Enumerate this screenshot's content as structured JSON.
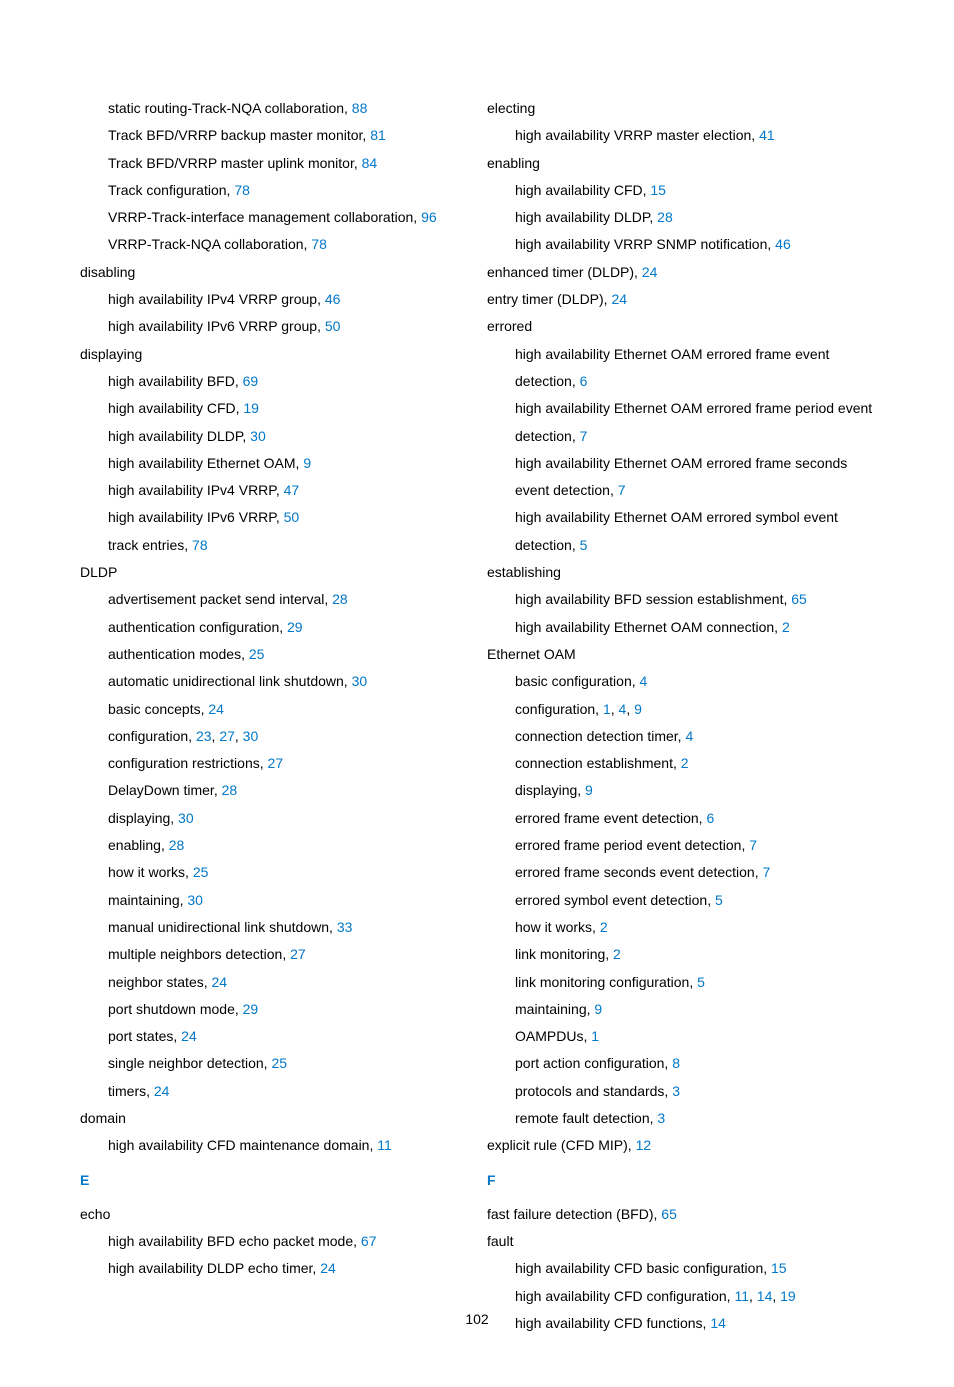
{
  "page_number": "102",
  "link_color": "#0077c8",
  "text_color": "#000000",
  "left_column": [
    {
      "type": "entry",
      "indent": 1,
      "text": "static routing-Track-NQA collaboration, ",
      "links": [
        "88"
      ]
    },
    {
      "type": "entry",
      "indent": 1,
      "text": "Track BFD/VRRP backup master monitor, ",
      "links": [
        "81"
      ]
    },
    {
      "type": "entry",
      "indent": 1,
      "text": "Track BFD/VRRP master uplink monitor, ",
      "links": [
        "84"
      ]
    },
    {
      "type": "entry",
      "indent": 1,
      "text": "Track configuration, ",
      "links": [
        "78"
      ]
    },
    {
      "type": "entry",
      "indent": 1,
      "text": "VRRP-Track-interface management collaboration, ",
      "links": [
        "96"
      ]
    },
    {
      "type": "entry",
      "indent": 1,
      "text": "VRRP-Track-NQA collaboration, ",
      "links": [
        "78"
      ]
    },
    {
      "type": "entry",
      "indent": 0,
      "text": "disabling",
      "links": []
    },
    {
      "type": "entry",
      "indent": 1,
      "text": "high availability IPv4 VRRP group, ",
      "links": [
        "46"
      ]
    },
    {
      "type": "entry",
      "indent": 1,
      "text": "high availability IPv6 VRRP group, ",
      "links": [
        "50"
      ]
    },
    {
      "type": "entry",
      "indent": 0,
      "text": "displaying",
      "links": []
    },
    {
      "type": "entry",
      "indent": 1,
      "text": "high availability BFD, ",
      "links": [
        "69"
      ]
    },
    {
      "type": "entry",
      "indent": 1,
      "text": "high availability CFD, ",
      "links": [
        "19"
      ]
    },
    {
      "type": "entry",
      "indent": 1,
      "text": "high availability DLDP, ",
      "links": [
        "30"
      ]
    },
    {
      "type": "entry",
      "indent": 1,
      "text": "high availability Ethernet OAM, ",
      "links": [
        "9"
      ]
    },
    {
      "type": "entry",
      "indent": 1,
      "text": "high availability IPv4 VRRP, ",
      "links": [
        "47"
      ]
    },
    {
      "type": "entry",
      "indent": 1,
      "text": "high availability IPv6 VRRP, ",
      "links": [
        "50"
      ]
    },
    {
      "type": "entry",
      "indent": 1,
      "text": "track entries, ",
      "links": [
        "78"
      ]
    },
    {
      "type": "entry",
      "indent": 0,
      "text": "DLDP",
      "links": []
    },
    {
      "type": "entry",
      "indent": 1,
      "text": "advertisement packet send interval, ",
      "links": [
        "28"
      ]
    },
    {
      "type": "entry",
      "indent": 1,
      "text": "authentication configuration, ",
      "links": [
        "29"
      ]
    },
    {
      "type": "entry",
      "indent": 1,
      "text": "authentication modes, ",
      "links": [
        "25"
      ]
    },
    {
      "type": "entry",
      "indent": 1,
      "text": "automatic unidirectional link shutdown, ",
      "links": [
        "30"
      ]
    },
    {
      "type": "entry",
      "indent": 1,
      "text": "basic concepts, ",
      "links": [
        "24"
      ]
    },
    {
      "type": "entry",
      "indent": 1,
      "text": "configuration, ",
      "links": [
        "23",
        "27",
        "30"
      ]
    },
    {
      "type": "entry",
      "indent": 1,
      "text": "configuration restrictions, ",
      "links": [
        "27"
      ]
    },
    {
      "type": "entry",
      "indent": 1,
      "text": "DelayDown timer, ",
      "links": [
        "28"
      ]
    },
    {
      "type": "entry",
      "indent": 1,
      "text": "displaying, ",
      "links": [
        "30"
      ]
    },
    {
      "type": "entry",
      "indent": 1,
      "text": "enabling, ",
      "links": [
        "28"
      ]
    },
    {
      "type": "entry",
      "indent": 1,
      "text": "how it works, ",
      "links": [
        "25"
      ]
    },
    {
      "type": "entry",
      "indent": 1,
      "text": "maintaining, ",
      "links": [
        "30"
      ]
    },
    {
      "type": "entry",
      "indent": 1,
      "text": "manual unidirectional link shutdown, ",
      "links": [
        "33"
      ]
    },
    {
      "type": "entry",
      "indent": 1,
      "text": "multiple neighbors detection, ",
      "links": [
        "27"
      ]
    },
    {
      "type": "entry",
      "indent": 1,
      "text": "neighbor states, ",
      "links": [
        "24"
      ]
    },
    {
      "type": "entry",
      "indent": 1,
      "text": "port shutdown mode, ",
      "links": [
        "29"
      ]
    },
    {
      "type": "entry",
      "indent": 1,
      "text": "port states, ",
      "links": [
        "24"
      ]
    },
    {
      "type": "entry",
      "indent": 1,
      "text": "single neighbor detection, ",
      "links": [
        "25"
      ]
    },
    {
      "type": "entry",
      "indent": 1,
      "text": "timers, ",
      "links": [
        "24"
      ]
    },
    {
      "type": "entry",
      "indent": 0,
      "text": "domain",
      "links": []
    },
    {
      "type": "entry",
      "indent": 1,
      "text": "high availability CFD maintenance domain, ",
      "links": [
        "11"
      ]
    },
    {
      "type": "section",
      "letter": "E"
    },
    {
      "type": "entry",
      "indent": 0,
      "text": "echo",
      "links": []
    },
    {
      "type": "entry",
      "indent": 1,
      "text": "high availability BFD echo packet mode, ",
      "links": [
        "67"
      ]
    },
    {
      "type": "entry",
      "indent": 1,
      "text": "high availability DLDP echo timer, ",
      "links": [
        "24"
      ]
    }
  ],
  "right_column": [
    {
      "type": "entry",
      "indent": 0,
      "text": "electing",
      "links": []
    },
    {
      "type": "entry",
      "indent": 1,
      "text": "high availability VRRP master election, ",
      "links": [
        "41"
      ]
    },
    {
      "type": "entry",
      "indent": 0,
      "text": "enabling",
      "links": []
    },
    {
      "type": "entry",
      "indent": 1,
      "text": "high availability CFD, ",
      "links": [
        "15"
      ]
    },
    {
      "type": "entry",
      "indent": 1,
      "text": "high availability DLDP, ",
      "links": [
        "28"
      ]
    },
    {
      "type": "entry",
      "indent": 1,
      "text": "high availability VRRP SNMP notification, ",
      "links": [
        "46"
      ]
    },
    {
      "type": "entry",
      "indent": 0,
      "text": "enhanced timer (DLDP), ",
      "links": [
        "24"
      ]
    },
    {
      "type": "entry",
      "indent": 0,
      "text": "entry timer (DLDP), ",
      "links": [
        "24"
      ]
    },
    {
      "type": "entry",
      "indent": 0,
      "text": "errored",
      "links": []
    },
    {
      "type": "entry",
      "indent": 1,
      "text": "high availability Ethernet OAM errored frame event detection, ",
      "links": [
        "6"
      ]
    },
    {
      "type": "entry",
      "indent": 1,
      "text": "high availability Ethernet OAM errored frame period event detection, ",
      "links": [
        "7"
      ]
    },
    {
      "type": "entry",
      "indent": 1,
      "text": "high availability Ethernet OAM errored frame seconds event detection, ",
      "links": [
        "7"
      ]
    },
    {
      "type": "entry",
      "indent": 1,
      "text": "high availability Ethernet OAM errored symbol event detection, ",
      "links": [
        "5"
      ]
    },
    {
      "type": "entry",
      "indent": 0,
      "text": "establishing",
      "links": []
    },
    {
      "type": "entry",
      "indent": 1,
      "text": "high availability BFD session establishment, ",
      "links": [
        "65"
      ]
    },
    {
      "type": "entry",
      "indent": 1,
      "text": "high availability Ethernet OAM connection, ",
      "links": [
        "2"
      ]
    },
    {
      "type": "entry",
      "indent": 0,
      "text": "Ethernet OAM",
      "links": []
    },
    {
      "type": "entry",
      "indent": 1,
      "text": "basic configuration, ",
      "links": [
        "4"
      ]
    },
    {
      "type": "entry",
      "indent": 1,
      "text": "configuration, ",
      "links": [
        "1",
        "4",
        "9"
      ]
    },
    {
      "type": "entry",
      "indent": 1,
      "text": "connection detection timer, ",
      "links": [
        "4"
      ]
    },
    {
      "type": "entry",
      "indent": 1,
      "text": "connection establishment, ",
      "links": [
        "2"
      ]
    },
    {
      "type": "entry",
      "indent": 1,
      "text": "displaying, ",
      "links": [
        "9"
      ]
    },
    {
      "type": "entry",
      "indent": 1,
      "text": "errored frame event detection, ",
      "links": [
        "6"
      ]
    },
    {
      "type": "entry",
      "indent": 1,
      "text": "errored frame period event detection, ",
      "links": [
        "7"
      ]
    },
    {
      "type": "entry",
      "indent": 1,
      "text": "errored frame seconds event detection, ",
      "links": [
        "7"
      ]
    },
    {
      "type": "entry",
      "indent": 1,
      "text": "errored symbol event detection, ",
      "links": [
        "5"
      ]
    },
    {
      "type": "entry",
      "indent": 1,
      "text": "how it works, ",
      "links": [
        "2"
      ]
    },
    {
      "type": "entry",
      "indent": 1,
      "text": "link monitoring, ",
      "links": [
        "2"
      ]
    },
    {
      "type": "entry",
      "indent": 1,
      "text": "link monitoring configuration, ",
      "links": [
        "5"
      ]
    },
    {
      "type": "entry",
      "indent": 1,
      "text": "maintaining, ",
      "links": [
        "9"
      ]
    },
    {
      "type": "entry",
      "indent": 1,
      "text": "OAMPDUs, ",
      "links": [
        "1"
      ]
    },
    {
      "type": "entry",
      "indent": 1,
      "text": "port action configuration, ",
      "links": [
        "8"
      ]
    },
    {
      "type": "entry",
      "indent": 1,
      "text": "protocols and standards, ",
      "links": [
        "3"
      ]
    },
    {
      "type": "entry",
      "indent": 1,
      "text": "remote fault detection, ",
      "links": [
        "3"
      ]
    },
    {
      "type": "entry",
      "indent": 0,
      "text": "explicit rule (CFD MIP), ",
      "links": [
        "12"
      ]
    },
    {
      "type": "section",
      "letter": "F"
    },
    {
      "type": "entry",
      "indent": 0,
      "text": "fast failure detection (BFD), ",
      "links": [
        "65"
      ]
    },
    {
      "type": "entry",
      "indent": 0,
      "text": "fault",
      "links": []
    },
    {
      "type": "entry",
      "indent": 1,
      "text": "high availability CFD basic configuration, ",
      "links": [
        "15"
      ]
    },
    {
      "type": "entry",
      "indent": 1,
      "text": "high availability CFD configuration, ",
      "links": [
        "11",
        "14",
        "19"
      ]
    },
    {
      "type": "entry",
      "indent": 1,
      "text": "high availability CFD functions, ",
      "links": [
        "14"
      ]
    }
  ]
}
